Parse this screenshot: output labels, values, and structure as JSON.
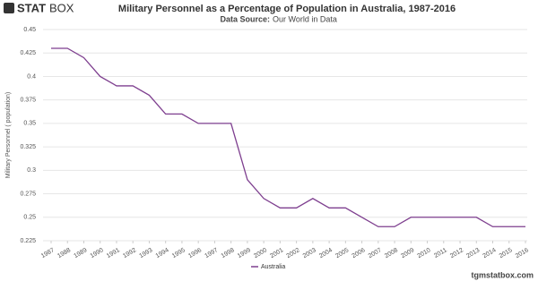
{
  "brand": {
    "bold": "STAT",
    "light": "BOX"
  },
  "footer": "tgmstatbox.com",
  "chart_data": {
    "type": "line",
    "title": "Military Personnel as a Percentage of Population in Australia, 1987-2016",
    "source_label": "Data Source:",
    "source": "Our World in Data",
    "y_label": "Military Personnel ( population)",
    "x": [
      1987,
      1988,
      1989,
      1990,
      1991,
      1992,
      1993,
      1994,
      1995,
      1996,
      1997,
      1998,
      1999,
      2000,
      2001,
      2002,
      2003,
      2004,
      2005,
      2006,
      2007,
      2008,
      2009,
      2010,
      2011,
      2012,
      2013,
      2014,
      2015,
      2016
    ],
    "series": [
      {
        "name": "Australia",
        "color": "#7e3f8f",
        "values": [
          0.43,
          0.43,
          0.42,
          0.4,
          0.39,
          0.39,
          0.38,
          0.36,
          0.36,
          0.35,
          0.35,
          0.35,
          0.29,
          0.27,
          0.26,
          0.26,
          0.27,
          0.26,
          0.26,
          0.25,
          0.24,
          0.24,
          0.25,
          0.25,
          0.25,
          0.25,
          0.25,
          0.24,
          0.24,
          0.24
        ]
      }
    ],
    "xlim": [
      1987,
      2016
    ],
    "xticks": [
      1987,
      1988,
      1989,
      1990,
      1991,
      1992,
      1993,
      1994,
      1995,
      1996,
      1997,
      1998,
      1999,
      2000,
      2001,
      2002,
      2003,
      2004,
      2005,
      2006,
      2007,
      2008,
      2009,
      2010,
      2011,
      2012,
      2013,
      2014,
      2015,
      2016
    ],
    "ylim": [
      0.225,
      0.45
    ],
    "yticks": [
      0.225,
      0.25,
      0.275,
      0.3,
      0.325,
      0.35,
      0.375,
      0.4,
      0.425,
      0.45
    ],
    "grid": true,
    "legend": "bottom"
  }
}
